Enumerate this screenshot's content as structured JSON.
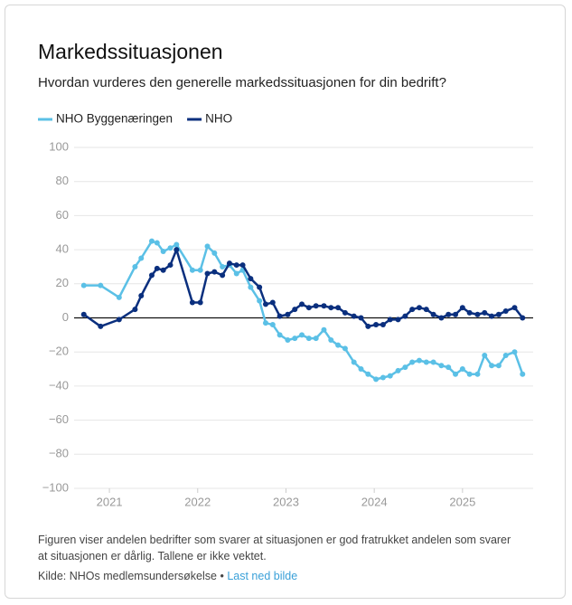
{
  "chart_data": {
    "type": "line",
    "title": "Markedssituasjonen",
    "subtitle": "Hvordan vurderes den generelle markedssituasjonen for din bedrift?",
    "note": "Figuren viser andelen bedrifter som svarer at situasjonen er god fratrukket andelen som svarer at situasjonen er dårlig. Tallene er ikke vektet.",
    "source": "Kilde: NHOs medlemsundersøkelse •",
    "link_text": "Last ned bilde",
    "x": [
      2020.71,
      2020.9,
      2021.11,
      2021.29,
      2021.36,
      2021.48,
      2021.54,
      2021.61,
      2021.69,
      2021.76,
      2021.94,
      2022.03,
      2022.11,
      2022.19,
      2022.28,
      2022.36,
      2022.44,
      2022.51,
      2022.6,
      2022.7,
      2022.77,
      2022.85,
      2022.93,
      2023.02,
      2023.1,
      2023.18,
      2023.26,
      2023.34,
      2023.43,
      2023.51,
      2023.59,
      2023.67,
      2023.77,
      2023.85,
      2023.93,
      2024.02,
      2024.1,
      2024.18,
      2024.27,
      2024.35,
      2024.43,
      2024.51,
      2024.59,
      2024.67,
      2024.76,
      2024.84,
      2024.92,
      2025.0,
      2025.08,
      2025.17,
      2025.25,
      2025.33,
      2025.41,
      2025.49,
      2025.59,
      2025.68
    ],
    "series": [
      {
        "name": "NHO Byggenæringen",
        "color": "#5bc0e6",
        "values": [
          19,
          19,
          12,
          30,
          35,
          45,
          44,
          39,
          41,
          43,
          28,
          28,
          42,
          38,
          30,
          31,
          26,
          28,
          18,
          10,
          -3,
          -4,
          -10,
          -13,
          -12,
          -10,
          -12,
          -12,
          -7,
          -13,
          -16,
          -18,
          -26,
          -30,
          -33,
          -36,
          -35,
          -34,
          -31,
          -29,
          -26,
          -25,
          -26,
          -26,
          -28,
          -29,
          -33,
          -30,
          -33,
          -33,
          -22,
          -28,
          -28,
          -22,
          -20,
          -33
        ]
      },
      {
        "name": "NHO",
        "color": "#0a2f7e",
        "values": [
          2,
          -5,
          -1,
          5,
          13,
          25,
          29,
          28,
          31,
          40,
          9,
          9,
          26,
          27,
          25,
          32,
          31,
          31,
          23,
          18,
          8,
          9,
          1,
          2,
          5,
          8,
          6,
          7,
          7,
          6,
          6,
          3,
          1,
          0,
          -5,
          -4,
          -4,
          -1,
          -1,
          1,
          5,
          6,
          5,
          2,
          0,
          2,
          2,
          6,
          3,
          2,
          3,
          1,
          2,
          4,
          6,
          0
        ]
      }
    ],
    "xlim": [
      2020.6,
      2025.8
    ],
    "xticks": [
      2021,
      2022,
      2023,
      2024,
      2025
    ],
    "ylim": [
      -100,
      100
    ],
    "yticks": [
      {
        "value": -100,
        "label": "−100"
      },
      {
        "value": -80,
        "label": "−80"
      },
      {
        "value": -60,
        "label": "−60"
      },
      {
        "value": -40,
        "label": "−40"
      },
      {
        "value": -20,
        "label": "−20"
      },
      0,
      20,
      40,
      60,
      80,
      100
    ],
    "grid": true
  }
}
